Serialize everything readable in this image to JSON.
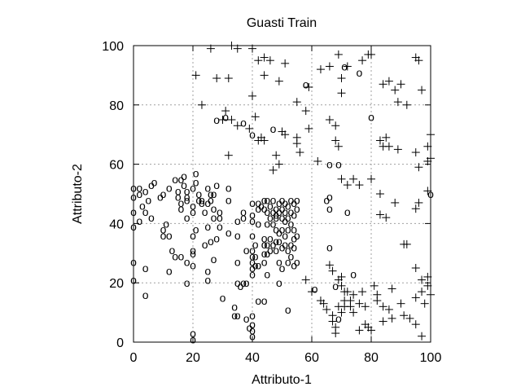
{
  "chart_data": {
    "type": "scatter",
    "title": "Guasti Train",
    "xlabel": "Attributo-1",
    "ylabel": "Attributo-2",
    "xlim": [
      0,
      100
    ],
    "ylim": [
      0,
      100
    ],
    "xticks": [
      0,
      20,
      40,
      60,
      80,
      100
    ],
    "yticks": [
      0,
      20,
      40,
      60,
      80,
      100
    ],
    "grid": true,
    "legend": "none",
    "series": [
      {
        "marker": "o",
        "points": [
          [
            0,
            52
          ],
          [
            0,
            49
          ],
          [
            0,
            44
          ],
          [
            0,
            39
          ],
          [
            0,
            27
          ],
          [
            0,
            21
          ],
          [
            2,
            52
          ],
          [
            2,
            50
          ],
          [
            2,
            41
          ],
          [
            3,
            46
          ],
          [
            4,
            51
          ],
          [
            4,
            44
          ],
          [
            4,
            25
          ],
          [
            4,
            16
          ],
          [
            5,
            48
          ],
          [
            6,
            53
          ],
          [
            6,
            42
          ],
          [
            7,
            54
          ],
          [
            9,
            49
          ],
          [
            10,
            50
          ],
          [
            10,
            38
          ],
          [
            10,
            36
          ],
          [
            11,
            40
          ],
          [
            12,
            52
          ],
          [
            12,
            36
          ],
          [
            12,
            24
          ],
          [
            13,
            31
          ],
          [
            14,
            29
          ],
          [
            14,
            55
          ],
          [
            15,
            51
          ],
          [
            15,
            49
          ],
          [
            16,
            47
          ],
          [
            16,
            45
          ],
          [
            16,
            55
          ],
          [
            16,
            29
          ],
          [
            17,
            56
          ],
          [
            17,
            53
          ],
          [
            18,
            51
          ],
          [
            18,
            49
          ],
          [
            18,
            48
          ],
          [
            18,
            42
          ],
          [
            18,
            27
          ],
          [
            18,
            20
          ],
          [
            20,
            52
          ],
          [
            20,
            46
          ],
          [
            20,
            44
          ],
          [
            20,
            36
          ],
          [
            20,
            31
          ],
          [
            20,
            30
          ],
          [
            20,
            26
          ],
          [
            20,
            3
          ],
          [
            20,
            1
          ],
          [
            21,
            54
          ],
          [
            21,
            57
          ],
          [
            21,
            38
          ],
          [
            22,
            50
          ],
          [
            22,
            48
          ],
          [
            23,
            48
          ],
          [
            23,
            47
          ],
          [
            24,
            44
          ],
          [
            24,
            33
          ],
          [
            25,
            52
          ],
          [
            25,
            47
          ],
          [
            25,
            39
          ],
          [
            25,
            21
          ],
          [
            25,
            24
          ],
          [
            26,
            50
          ],
          [
            26,
            48
          ],
          [
            26,
            34
          ],
          [
            27,
            50
          ],
          [
            27,
            45
          ],
          [
            27,
            42
          ],
          [
            27,
            28
          ],
          [
            28,
            75
          ],
          [
            28,
            53
          ],
          [
            28,
            35
          ],
          [
            29,
            44
          ],
          [
            29,
            42
          ],
          [
            29,
            39
          ],
          [
            30,
            15
          ],
          [
            31,
            76
          ],
          [
            32,
            52
          ],
          [
            32,
            48
          ],
          [
            32,
            37
          ],
          [
            34,
            12
          ],
          [
            34,
            9
          ],
          [
            35,
            9
          ],
          [
            35,
            41
          ],
          [
            35,
            36
          ],
          [
            35,
            27
          ],
          [
            35,
            20
          ],
          [
            36,
            19
          ],
          [
            37,
            74
          ],
          [
            37,
            44
          ],
          [
            37,
            42
          ],
          [
            37,
            20
          ],
          [
            38,
            31
          ],
          [
            38,
            20
          ],
          [
            38,
            8
          ],
          [
            39,
            5
          ],
          [
            40,
            70
          ],
          [
            40,
            47
          ],
          [
            40,
            43
          ],
          [
            40,
            41
          ],
          [
            40,
            36
          ],
          [
            40,
            31
          ],
          [
            40,
            29
          ],
          [
            40,
            27
          ],
          [
            40,
            25
          ],
          [
            40,
            23
          ],
          [
            40,
            9
          ],
          [
            40,
            6
          ],
          [
            40,
            4
          ],
          [
            40,
            2
          ],
          [
            41,
            33
          ],
          [
            41,
            29
          ],
          [
            41,
            26
          ],
          [
            42,
            47
          ],
          [
            42,
            45
          ],
          [
            42,
            40
          ],
          [
            42,
            26
          ],
          [
            42,
            14
          ],
          [
            43,
            46
          ],
          [
            44,
            48
          ],
          [
            44,
            45
          ],
          [
            44,
            35
          ],
          [
            44,
            33
          ],
          [
            44,
            30
          ],
          [
            44,
            27
          ],
          [
            44,
            14
          ],
          [
            45,
            48
          ],
          [
            45,
            44
          ],
          [
            45,
            40
          ],
          [
            45,
            33
          ],
          [
            45,
            30
          ],
          [
            45,
            23
          ],
          [
            46,
            46
          ],
          [
            46,
            42
          ],
          [
            46,
            35
          ],
          [
            46,
            31
          ],
          [
            47,
            48
          ],
          [
            47,
            44
          ],
          [
            47,
            40
          ],
          [
            47,
            33
          ],
          [
            47,
            72
          ],
          [
            48,
            45
          ],
          [
            48,
            43
          ],
          [
            48,
            42
          ],
          [
            48,
            38
          ],
          [
            48,
            34
          ],
          [
            48,
            31
          ],
          [
            49,
            47
          ],
          [
            49,
            44
          ],
          [
            49,
            37
          ],
          [
            49,
            34
          ],
          [
            49,
            27
          ],
          [
            49,
            20
          ],
          [
            50,
            48
          ],
          [
            50,
            45
          ],
          [
            50,
            42
          ],
          [
            50,
            38
          ],
          [
            50,
            32
          ],
          [
            50,
            25
          ],
          [
            51,
            47
          ],
          [
            51,
            44
          ],
          [
            51,
            41
          ],
          [
            51,
            36
          ],
          [
            51,
            33
          ],
          [
            52,
            46
          ],
          [
            52,
            42
          ],
          [
            52,
            38
          ],
          [
            52,
            31
          ],
          [
            52,
            27
          ],
          [
            52,
            11
          ],
          [
            53,
            48
          ],
          [
            53,
            44
          ],
          [
            53,
            40
          ],
          [
            53,
            33
          ],
          [
            53,
            29
          ],
          [
            54,
            47
          ],
          [
            54,
            43
          ],
          [
            54,
            38
          ],
          [
            54,
            35
          ],
          [
            54,
            32
          ],
          [
            54,
            26
          ],
          [
            55,
            48
          ],
          [
            55,
            45
          ],
          [
            55,
            36
          ],
          [
            55,
            27
          ],
          [
            58,
            87
          ],
          [
            61,
            18
          ],
          [
            65,
            48
          ],
          [
            66,
            60
          ],
          [
            66,
            49
          ],
          [
            66,
            45
          ],
          [
            66,
            32
          ],
          [
            69,
            8
          ],
          [
            68,
            19
          ],
          [
            69,
            60
          ],
          [
            71,
            93
          ],
          [
            72,
            44
          ],
          [
            74,
            23
          ],
          [
            76,
            91
          ],
          [
            80,
            76
          ],
          [
            100,
            50
          ]
        ]
      },
      {
        "marker": "+",
        "points": [
          [
            21,
            90
          ],
          [
            26,
            99
          ],
          [
            28,
            89
          ],
          [
            32,
            89
          ],
          [
            33,
            100
          ],
          [
            35,
            99
          ],
          [
            40,
            99
          ],
          [
            42,
            95
          ],
          [
            44,
            96
          ],
          [
            44,
            90
          ],
          [
            46,
            95
          ],
          [
            49,
            88
          ],
          [
            51,
            94
          ],
          [
            55,
            81
          ],
          [
            58,
            78
          ],
          [
            59,
            86
          ],
          [
            63,
            92
          ],
          [
            66,
            93
          ],
          [
            69,
            97
          ],
          [
            70,
            89
          ],
          [
            70,
            84
          ],
          [
            72,
            93
          ],
          [
            77,
            95
          ],
          [
            79,
            97
          ],
          [
            80,
            97
          ],
          [
            84,
            87
          ],
          [
            86,
            88
          ],
          [
            88,
            85
          ],
          [
            89,
            81
          ],
          [
            90,
            87
          ],
          [
            92,
            80
          ],
          [
            95,
            96
          ],
          [
            97,
            85
          ],
          [
            96,
            95
          ],
          [
            23,
            80
          ],
          [
            31,
            78
          ],
          [
            30,
            75
          ],
          [
            33,
            75
          ],
          [
            32,
            63
          ],
          [
            35,
            73
          ],
          [
            39,
            72
          ],
          [
            40,
            83
          ],
          [
            41,
            76
          ],
          [
            42,
            68
          ],
          [
            43,
            69
          ],
          [
            44,
            68
          ],
          [
            47,
            58
          ],
          [
            48,
            63
          ],
          [
            49,
            60
          ],
          [
            50,
            71
          ],
          [
            51,
            70
          ],
          [
            55,
            69
          ],
          [
            55,
            67
          ],
          [
            56,
            64
          ],
          [
            59,
            72
          ],
          [
            62,
            61
          ],
          [
            66,
            75
          ],
          [
            68,
            73
          ],
          [
            68,
            68
          ],
          [
            69,
            66
          ],
          [
            83,
            68
          ],
          [
            84,
            66
          ],
          [
            85,
            69
          ],
          [
            86,
            66
          ],
          [
            89,
            65
          ],
          [
            95,
            64
          ],
          [
            96,
            59
          ],
          [
            99,
            61
          ],
          [
            99,
            66
          ],
          [
            100,
            70
          ],
          [
            100,
            62
          ],
          [
            70,
            55
          ],
          [
            72,
            53
          ],
          [
            74,
            55
          ],
          [
            76,
            53
          ],
          [
            80,
            55
          ],
          [
            83,
            50
          ],
          [
            83,
            43
          ],
          [
            85,
            42
          ],
          [
            88,
            47
          ],
          [
            91,
            33
          ],
          [
            92,
            33
          ],
          [
            95,
            45
          ],
          [
            96,
            47
          ],
          [
            99,
            51
          ],
          [
            66,
            26
          ],
          [
            67,
            24
          ],
          [
            69,
            21
          ],
          [
            70,
            22
          ],
          [
            70,
            19
          ],
          [
            71,
            17
          ],
          [
            71,
            14
          ],
          [
            71,
            12
          ],
          [
            72,
            17
          ],
          [
            73,
            14
          ],
          [
            74,
            16
          ],
          [
            76,
            13
          ],
          [
            77,
            17
          ],
          [
            78,
            12
          ],
          [
            81,
            19
          ],
          [
            82,
            16
          ],
          [
            84,
            7
          ],
          [
            86,
            11
          ],
          [
            87,
            18
          ],
          [
            91,
            9
          ],
          [
            95,
            15
          ],
          [
            97,
            17
          ],
          [
            98,
            13
          ],
          [
            99,
            19
          ],
          [
            99,
            22
          ],
          [
            100,
            16
          ],
          [
            95,
            25
          ],
          [
            97,
            21
          ],
          [
            63,
            14
          ],
          [
            64,
            13
          ],
          [
            65,
            11
          ],
          [
            67,
            7
          ],
          [
            67,
            9
          ],
          [
            68,
            5
          ],
          [
            68,
            3
          ],
          [
            69,
            12
          ],
          [
            70,
            10
          ],
          [
            73,
            12
          ],
          [
            74,
            10
          ],
          [
            76,
            4
          ],
          [
            78,
            6
          ],
          [
            79,
            5
          ],
          [
            80,
            4
          ],
          [
            82,
            14
          ],
          [
            84,
            12
          ],
          [
            87,
            8
          ],
          [
            90,
            13
          ],
          [
            93,
            8
          ],
          [
            95,
            6
          ],
          [
            97,
            2
          ],
          [
            58,
            21
          ],
          [
            60,
            17
          ]
        ]
      }
    ]
  }
}
